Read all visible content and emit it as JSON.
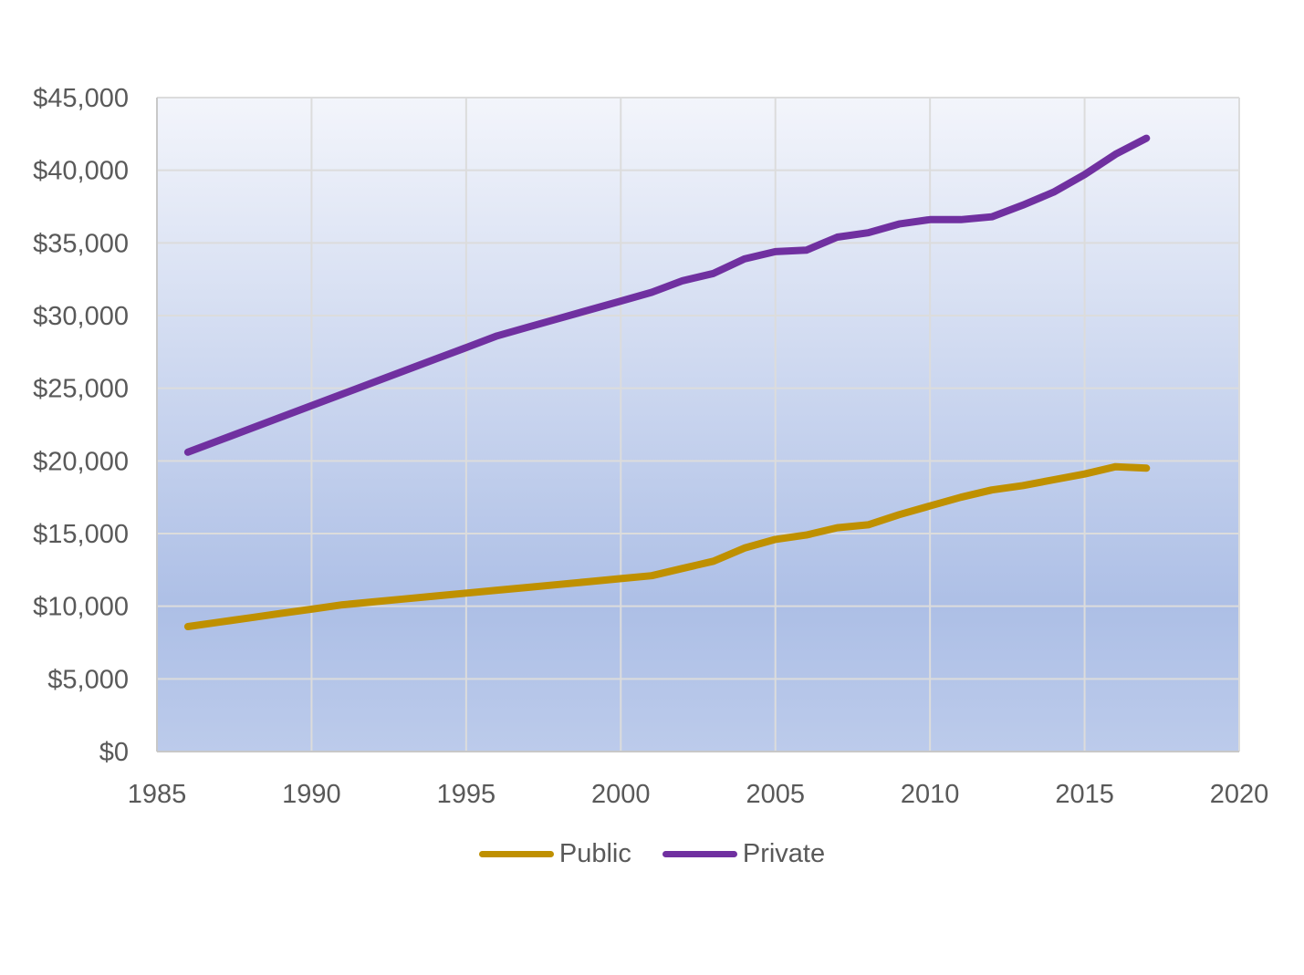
{
  "chart_data": {
    "type": "line",
    "title": "",
    "xlabel": "",
    "ylabel": "",
    "xlim": [
      1985,
      2020
    ],
    "ylim": [
      0,
      45000
    ],
    "x_ticks": [
      1985,
      1990,
      1995,
      2000,
      2005,
      2010,
      2015,
      2020
    ],
    "x_tick_labels": [
      "1985",
      "1990",
      "1995",
      "2000",
      "2005",
      "2010",
      "2015",
      "2020"
    ],
    "y_ticks": [
      0,
      5000,
      10000,
      15000,
      20000,
      25000,
      30000,
      35000,
      40000,
      45000
    ],
    "y_tick_labels": [
      "$0",
      "$5,000",
      "$10,000",
      "$15,000",
      "$20,000",
      "$25,000",
      "$30,000",
      "$35,000",
      "$40,000",
      "$45,000"
    ],
    "grid": true,
    "legend_position": "bottom",
    "x": [
      1986,
      1987,
      1988,
      1989,
      1990,
      1991,
      1992,
      1993,
      1994,
      1995,
      1996,
      1997,
      1998,
      1999,
      2000,
      2001,
      2002,
      2003,
      2004,
      2005,
      2006,
      2007,
      2008,
      2009,
      2010,
      2011,
      2012,
      2013,
      2014,
      2015,
      2016,
      2017
    ],
    "series": [
      {
        "name": "Public",
        "color": "#bf9000",
        "values": [
          8600,
          8900,
          9200,
          9500,
          9800,
          10100,
          10300,
          10500,
          10700,
          10900,
          11100,
          11300,
          11500,
          11700,
          11900,
          12100,
          12600,
          13100,
          14000,
          14600,
          14900,
          15400,
          15600,
          16300,
          16900,
          17500,
          18000,
          18300,
          18700,
          19100,
          19600,
          19500
        ]
      },
      {
        "name": "Private",
        "color": "#7030a0",
        "values": [
          20600,
          21400,
          22200,
          23000,
          23800,
          24600,
          25400,
          26200,
          27000,
          27800,
          28600,
          29200,
          29800,
          30400,
          31000,
          31600,
          32400,
          32900,
          33900,
          34400,
          34500,
          35400,
          35700,
          36300,
          36600,
          36600,
          36800,
          37600,
          38500,
          39700,
          41100,
          42200
        ]
      }
    ]
  }
}
